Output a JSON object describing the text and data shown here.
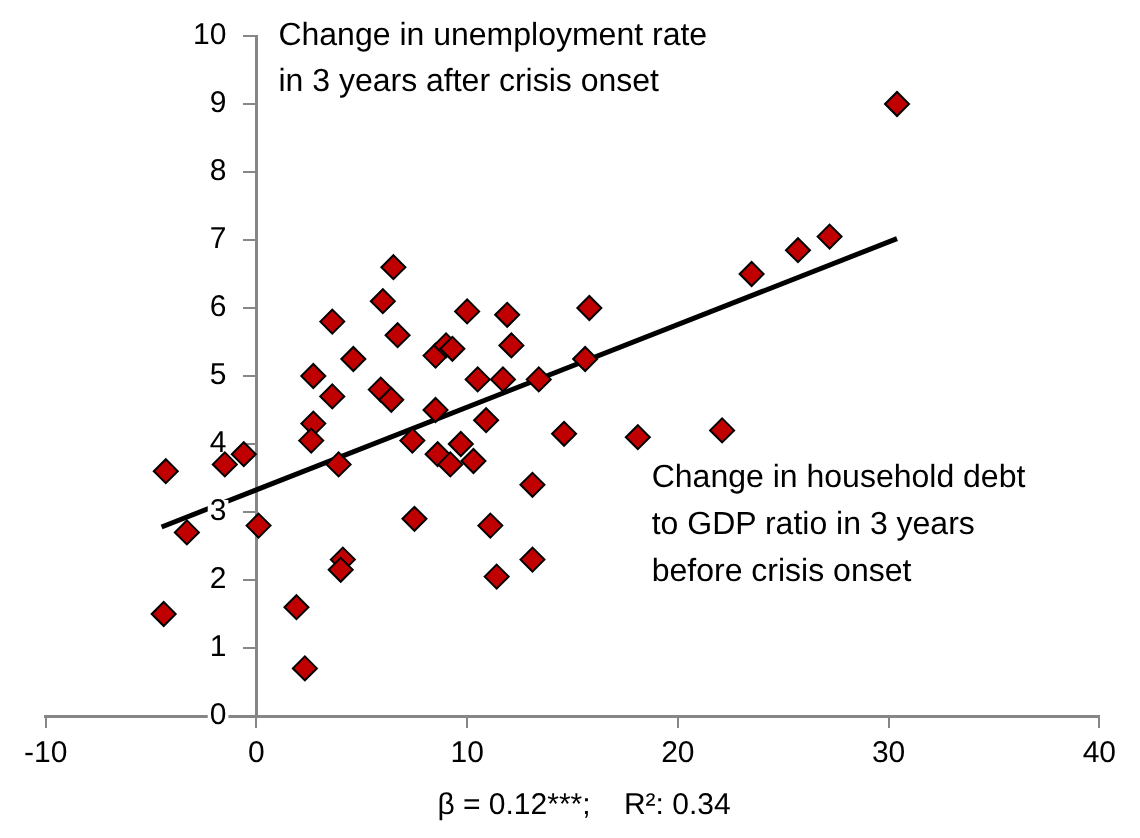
{
  "chart_data": {
    "type": "scatter",
    "ylabel": "Change in unemployment rate\nin 3 years after crisis onset",
    "xlabel": "Change in household debt\nto GDP ratio in 3 years\nbefore crisis onset",
    "annotations": [
      "β = 0.12***;    R²: 0.34"
    ],
    "xlim": [
      -10,
      40
    ],
    "xticks": [
      -10,
      0,
      10,
      20,
      30,
      40
    ],
    "ylim": [
      0,
      10
    ],
    "yticks": [
      0,
      1,
      2,
      3,
      4,
      5,
      6,
      7,
      8,
      9,
      10
    ],
    "grid": false,
    "legend": false,
    "marker": "diamond",
    "series": [
      {
        "color": "#c00000",
        "x": [
          -4.3,
          -4.4,
          -3.3,
          -1.5,
          -0.6,
          0.1,
          1.9,
          2.3,
          2.7,
          2.7,
          2.6,
          3.6,
          3.6,
          3.9,
          4.1,
          4.0,
          4.6,
          6.0,
          6.5,
          5.9,
          6.4,
          6.7,
          7.4,
          7.5,
          8.5,
          8.5,
          8.6,
          9.0,
          9.3,
          9.2,
          9.7,
          10.0,
          10.3,
          10.5,
          10.9,
          11.1,
          11.4,
          11.7,
          11.9,
          12.1,
          13.1,
          13.1,
          13.4,
          14.6,
          15.8,
          15.6,
          18.1,
          22.1,
          23.5,
          25.7,
          27.2,
          30.4
        ],
        "values": [
          3.6,
          1.5,
          2.7,
          3.7,
          3.85,
          2.8,
          1.6,
          0.7,
          5.0,
          4.3,
          4.05,
          5.8,
          4.7,
          3.7,
          2.3,
          2.15,
          5.25,
          6.1,
          6.6,
          4.8,
          4.65,
          5.6,
          4.05,
          2.9,
          5.3,
          4.5,
          3.85,
          5.45,
          5.4,
          3.7,
          4.0,
          5.95,
          3.75,
          4.95,
          4.35,
          2.8,
          2.05,
          4.95,
          5.9,
          5.45,
          3.4,
          2.3,
          4.95,
          4.15,
          6.0,
          5.25,
          4.1,
          4.2,
          6.5,
          6.85,
          7.05,
          9.0
        ]
      },
      {
        "type": "line",
        "color": "#000000",
        "marker": "none",
        "x": [
          -4.5,
          30.4
        ],
        "values": [
          2.78,
          7.02
        ]
      }
    ]
  }
}
